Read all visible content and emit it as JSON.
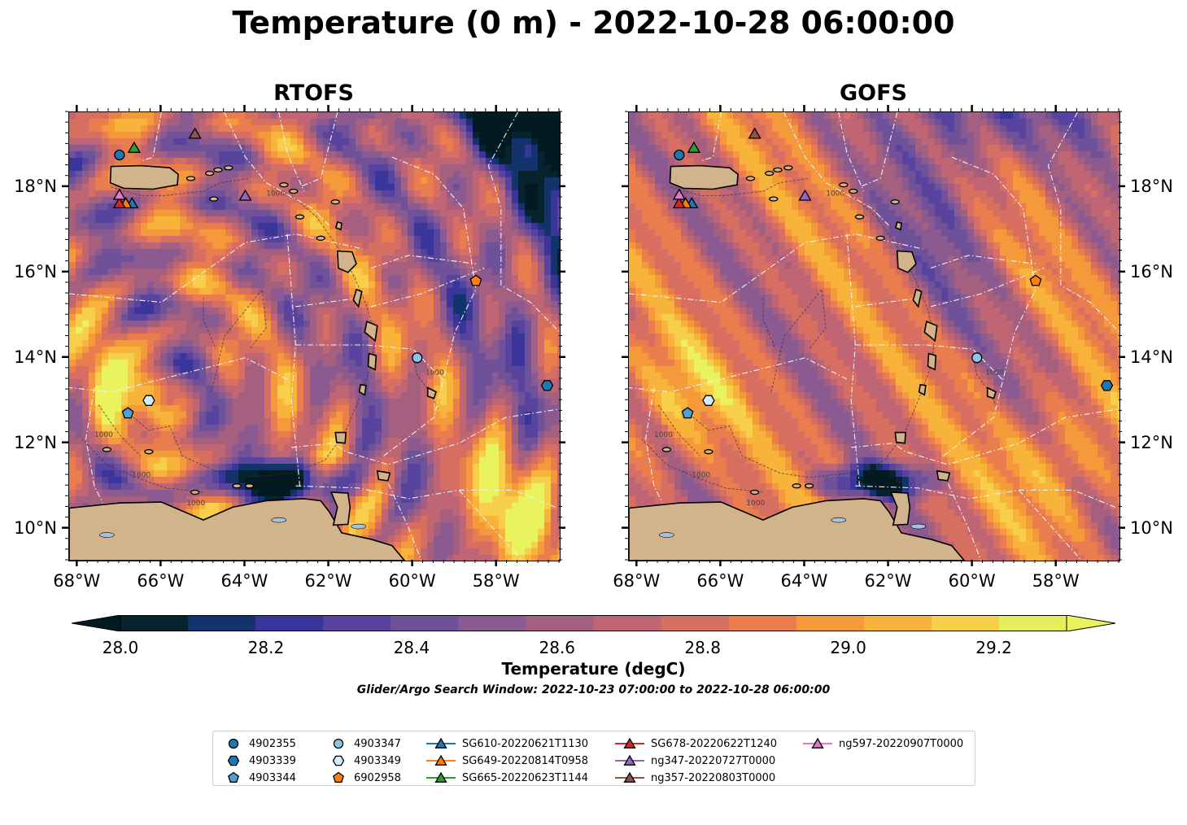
{
  "figure": {
    "title": "Temperature (0 m) - 2022-10-28 06:00:00",
    "search_window": "Glider/Argo Search Window: 2022-10-23 07:00:00 to 2022-10-28 06:00:00"
  },
  "maps": [
    {
      "title": "RTOFS",
      "model": "RTOFS"
    },
    {
      "title": "GOFS",
      "model": "GOFS"
    }
  ],
  "extent": {
    "lon_min": -68.2,
    "lon_max": -56.5,
    "lat_min": 9.25,
    "lat_max": 19.75
  },
  "axes": {
    "x_ticks": [
      {
        "lon": -68,
        "label": "68°W"
      },
      {
        "lon": -66,
        "label": "66°W"
      },
      {
        "lon": -64,
        "label": "64°W"
      },
      {
        "lon": -62,
        "label": "62°W"
      },
      {
        "lon": -60,
        "label": "60°W"
      },
      {
        "lon": -58,
        "label": "58°W"
      }
    ],
    "y_ticks": [
      {
        "lat": 18,
        "label": "18°N"
      },
      {
        "lat": 16,
        "label": "16°N"
      },
      {
        "lat": 14,
        "label": "14°N"
      },
      {
        "lat": 12,
        "label": "12°N"
      },
      {
        "lat": 10,
        "label": "10°N"
      }
    ]
  },
  "colorbar": {
    "label": "Temperature (degC)",
    "min": 28.0,
    "max": 29.3,
    "step": 0.1,
    "extend": "both",
    "ticks": [
      {
        "value": 28.0,
        "label": "28.0"
      },
      {
        "value": 28.2,
        "label": "28.2"
      },
      {
        "value": 28.4,
        "label": "28.4"
      },
      {
        "value": 28.6,
        "label": "28.6"
      },
      {
        "value": 28.8,
        "label": "28.8"
      },
      {
        "value": 29.0,
        "label": "29.0"
      },
      {
        "value": 29.2,
        "label": "29.2"
      }
    ],
    "colors": [
      "#06232e",
      "#12336b",
      "#3a359a",
      "#58449e",
      "#6f5199",
      "#8a5a91",
      "#a5607f",
      "#bf6573",
      "#d76e62",
      "#ea7d4d",
      "#f59a3b",
      "#f8b33a",
      "#f8cf4a",
      "#e6ee5b"
    ],
    "under_color": "#041a23",
    "over_color": "#e9f35d"
  },
  "legend": [
    {
      "label": "4902355",
      "marker": "circle",
      "color": "#1f77b4"
    },
    {
      "label": "4903339",
      "marker": "hexagon",
      "color": "#1f77b4"
    },
    {
      "label": "4903344",
      "marker": "pentagon",
      "color": "#4a9fd4"
    },
    {
      "label": "4903347",
      "marker": "circle",
      "color": "#8ec3ea"
    },
    {
      "label": "4903349",
      "marker": "hexagon",
      "color": "#d4ebfb"
    },
    {
      "label": "6902958",
      "marker": "pentagon",
      "color": "#ff7f0e"
    },
    {
      "label": "SG610-20220621T1130",
      "marker": "triangle",
      "color": "#1f77b4"
    },
    {
      "label": "SG649-20220814T0958",
      "marker": "triangle",
      "color": "#ff7f0e"
    },
    {
      "label": "SG665-20220623T1144",
      "marker": "triangle",
      "color": "#2ca02c"
    },
    {
      "label": "SG678-20220622T1240",
      "marker": "triangle",
      "color": "#d62728"
    },
    {
      "label": "ng347-20220727T0000",
      "marker": "triangle",
      "color": "#9467bd"
    },
    {
      "label": "ng357-20220803T0000",
      "marker": "triangle",
      "color": "#8c564b"
    },
    {
      "label": "ng597-20220907T0000",
      "marker": "triangle",
      "color": "#e377c2"
    }
  ],
  "observations": [
    {
      "id": "4902355",
      "lon": -67.0,
      "lat": 18.75
    },
    {
      "id": "4903339",
      "lon": -56.8,
      "lat": 13.35
    },
    {
      "id": "4903344",
      "lon": -66.8,
      "lat": 12.7
    },
    {
      "id": "4903347",
      "lon": -59.9,
      "lat": 14.0
    },
    {
      "id": "4903349",
      "lon": -66.3,
      "lat": 13.0
    },
    {
      "id": "6902958",
      "lon": -58.5,
      "lat": 15.8
    },
    {
      "id": "SG610-20220621T1130",
      "lon": -66.7,
      "lat": 17.62
    },
    {
      "id": "SG649-20220814T0958",
      "lon": -66.85,
      "lat": 17.62
    },
    {
      "id": "SG665-20220623T1144",
      "lon": -66.65,
      "lat": 18.92
    },
    {
      "id": "SG678-20220622T1240",
      "lon": -67.0,
      "lat": 17.62
    },
    {
      "id": "ng347-20220727T0000",
      "lon": -64.0,
      "lat": 17.8
    },
    {
      "id": "ng357-20220803T0000",
      "lon": -65.2,
      "lat": 19.25
    },
    {
      "id": "ng597-20220907T0000",
      "lon": -67.0,
      "lat": 17.82
    }
  ],
  "contour_labels": [
    "1000",
    "1000",
    "1000",
    "1000",
    "1000"
  ],
  "land_color": "#d2b48c",
  "lake_color": "#a6c1dd"
}
